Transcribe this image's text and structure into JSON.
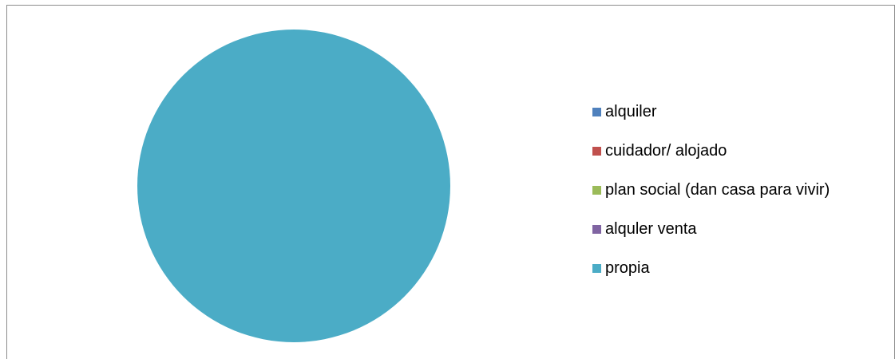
{
  "chart_data": {
    "type": "pie",
    "categories": [
      "alquiler",
      "cuidador/ alojado",
      "plan social (dan casa para vivir)",
      "alquler venta",
      "propia"
    ],
    "values": [
      0,
      0,
      0,
      0,
      100
    ],
    "colors": [
      "#4f81bd",
      "#c0504d",
      "#9bbb59",
      "#8064a2",
      "#4bacc6"
    ],
    "legend_position": "right",
    "title": ""
  }
}
